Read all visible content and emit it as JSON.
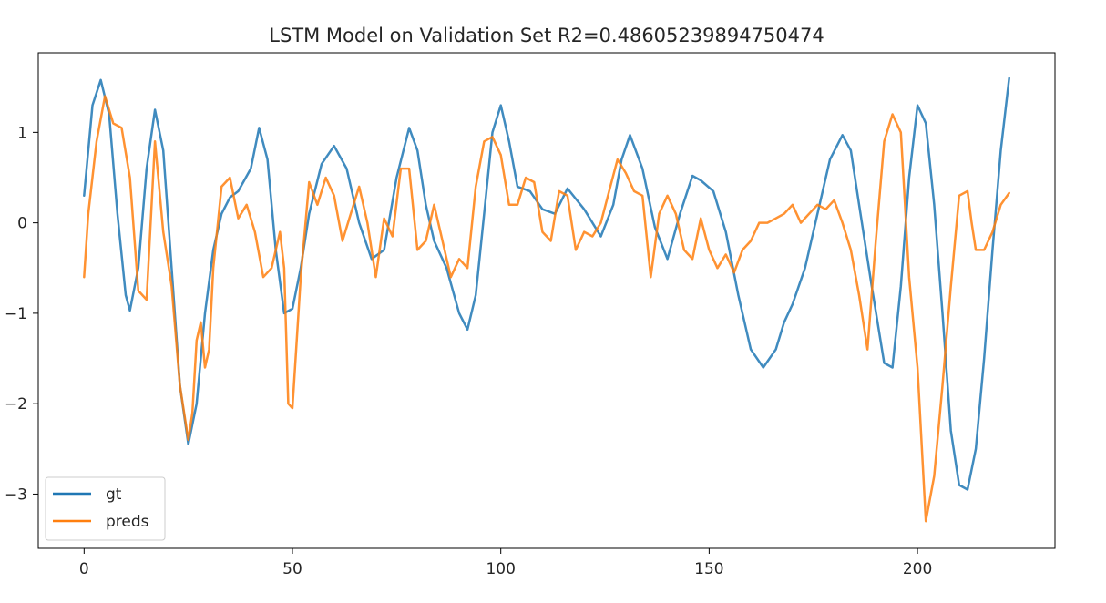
{
  "chart_data": {
    "type": "line",
    "title": "LSTM Model on Validation Set R2=0.48605239894750474",
    "xlabel": "",
    "ylabel": "",
    "xlim": [
      -11,
      233
    ],
    "ylim": [
      -3.6,
      1.88
    ],
    "xticks": [
      0,
      50,
      100,
      150,
      200
    ],
    "xtick_labels": [
      "0",
      "50",
      "100",
      "150",
      "200"
    ],
    "yticks": [
      1,
      0,
      -1,
      -2,
      -3
    ],
    "ytick_labels": [
      "1",
      "0",
      "−1",
      "−2",
      "−3"
    ],
    "grid": false,
    "legend_position": "lower-left",
    "series": [
      {
        "name": "gt",
        "color": "#1f77b4",
        "x": [
          0,
          2,
          4,
          6,
          8,
          10,
          11,
          13,
          15,
          17,
          19,
          21,
          23,
          25,
          27,
          29,
          31,
          33,
          35,
          37,
          40,
          42,
          44,
          46,
          48,
          50,
          52,
          54,
          57,
          60,
          63,
          66,
          69,
          72,
          75,
          78,
          80,
          82,
          84,
          87,
          90,
          92,
          94,
          96,
          98,
          100,
          102,
          104,
          107,
          110,
          113,
          116,
          120,
          124,
          127,
          129,
          131,
          134,
          137,
          140,
          143,
          146,
          148,
          151,
          154,
          157,
          160,
          163,
          166,
          168,
          170,
          173,
          176,
          179,
          182,
          184,
          186,
          189,
          192,
          194,
          196,
          198,
          200,
          202,
          204,
          206,
          208,
          210,
          212,
          214,
          216,
          218,
          220,
          222
        ],
        "y": [
          0.3,
          1.3,
          1.58,
          1.2,
          0.1,
          -0.8,
          -0.97,
          -0.5,
          0.6,
          1.25,
          0.8,
          -0.5,
          -1.8,
          -2.45,
          -2.0,
          -1.0,
          -0.3,
          0.1,
          0.28,
          0.35,
          0.6,
          1.05,
          0.7,
          -0.3,
          -1.0,
          -0.95,
          -0.5,
          0.1,
          0.65,
          0.85,
          0.6,
          0.0,
          -0.4,
          -0.3,
          0.5,
          1.05,
          0.8,
          0.2,
          -0.2,
          -0.5,
          -1.0,
          -1.18,
          -0.8,
          0.1,
          1.0,
          1.3,
          0.9,
          0.4,
          0.35,
          0.15,
          0.1,
          0.38,
          0.15,
          -0.15,
          0.2,
          0.7,
          0.97,
          0.6,
          -0.05,
          -0.4,
          0.1,
          0.52,
          0.47,
          0.35,
          -0.1,
          -0.8,
          -1.4,
          -1.6,
          -1.4,
          -1.1,
          -0.9,
          -0.5,
          0.1,
          0.7,
          0.97,
          0.8,
          0.2,
          -0.7,
          -1.55,
          -1.6,
          -0.7,
          0.5,
          1.3,
          1.1,
          0.2,
          -1.0,
          -2.3,
          -2.9,
          -2.95,
          -2.5,
          -1.5,
          -0.3,
          0.8,
          1.6
        ]
      },
      {
        "name": "preds",
        "color": "#ff7f0e",
        "x": [
          0,
          1,
          3,
          5,
          7,
          9,
          11,
          13,
          15,
          17,
          19,
          21,
          23,
          25,
          26,
          27,
          28,
          29,
          30,
          31,
          33,
          35,
          37,
          39,
          41,
          43,
          45,
          47,
          48,
          49,
          50,
          52,
          54,
          56,
          58,
          60,
          62,
          64,
          66,
          68,
          70,
          72,
          74,
          76,
          78,
          80,
          82,
          84,
          86,
          88,
          90,
          92,
          94,
          96,
          98,
          100,
          102,
          104,
          106,
          108,
          110,
          112,
          114,
          116,
          118,
          120,
          122,
          124,
          126,
          128,
          130,
          132,
          134,
          136,
          138,
          140,
          142,
          144,
          146,
          148,
          150,
          152,
          154,
          156,
          158,
          160,
          162,
          164,
          166,
          168,
          170,
          172,
          174,
          176,
          178,
          180,
          182,
          184,
          186,
          188,
          190,
          192,
          194,
          196,
          198,
          200,
          202,
          204,
          206,
          208,
          210,
          212,
          213,
          214,
          216,
          218,
          220,
          222
        ],
        "y": [
          -0.6,
          0.1,
          0.9,
          1.4,
          1.1,
          1.05,
          0.5,
          -0.75,
          -0.85,
          0.9,
          -0.1,
          -0.7,
          -1.8,
          -2.4,
          -2.1,
          -1.3,
          -1.1,
          -1.6,
          -1.4,
          -0.5,
          0.4,
          0.5,
          0.05,
          0.2,
          -0.1,
          -0.6,
          -0.5,
          -0.1,
          -0.5,
          -2.0,
          -2.05,
          -0.6,
          0.45,
          0.2,
          0.5,
          0.3,
          -0.2,
          0.1,
          0.4,
          0.0,
          -0.6,
          0.05,
          -0.15,
          0.6,
          0.6,
          -0.3,
          -0.2,
          0.2,
          -0.2,
          -0.6,
          -0.4,
          -0.5,
          0.4,
          0.9,
          0.95,
          0.75,
          0.2,
          0.2,
          0.5,
          0.45,
          -0.1,
          -0.2,
          0.35,
          0.3,
          -0.3,
          -0.1,
          -0.15,
          0.0,
          0.35,
          0.7,
          0.55,
          0.35,
          0.3,
          -0.6,
          0.1,
          0.3,
          0.1,
          -0.3,
          -0.4,
          0.05,
          -0.3,
          -0.5,
          -0.35,
          -0.55,
          -0.3,
          -0.2,
          0.0,
          0.0,
          0.05,
          0.1,
          0.2,
          0.0,
          0.1,
          0.2,
          0.15,
          0.25,
          0.0,
          -0.3,
          -0.8,
          -1.4,
          -0.2,
          0.9,
          1.2,
          1.0,
          -0.6,
          -1.6,
          -3.3,
          -2.8,
          -1.8,
          -0.7,
          0.3,
          0.35,
          0.0,
          -0.3,
          -0.3,
          -0.1,
          0.2,
          0.33
        ]
      }
    ]
  }
}
